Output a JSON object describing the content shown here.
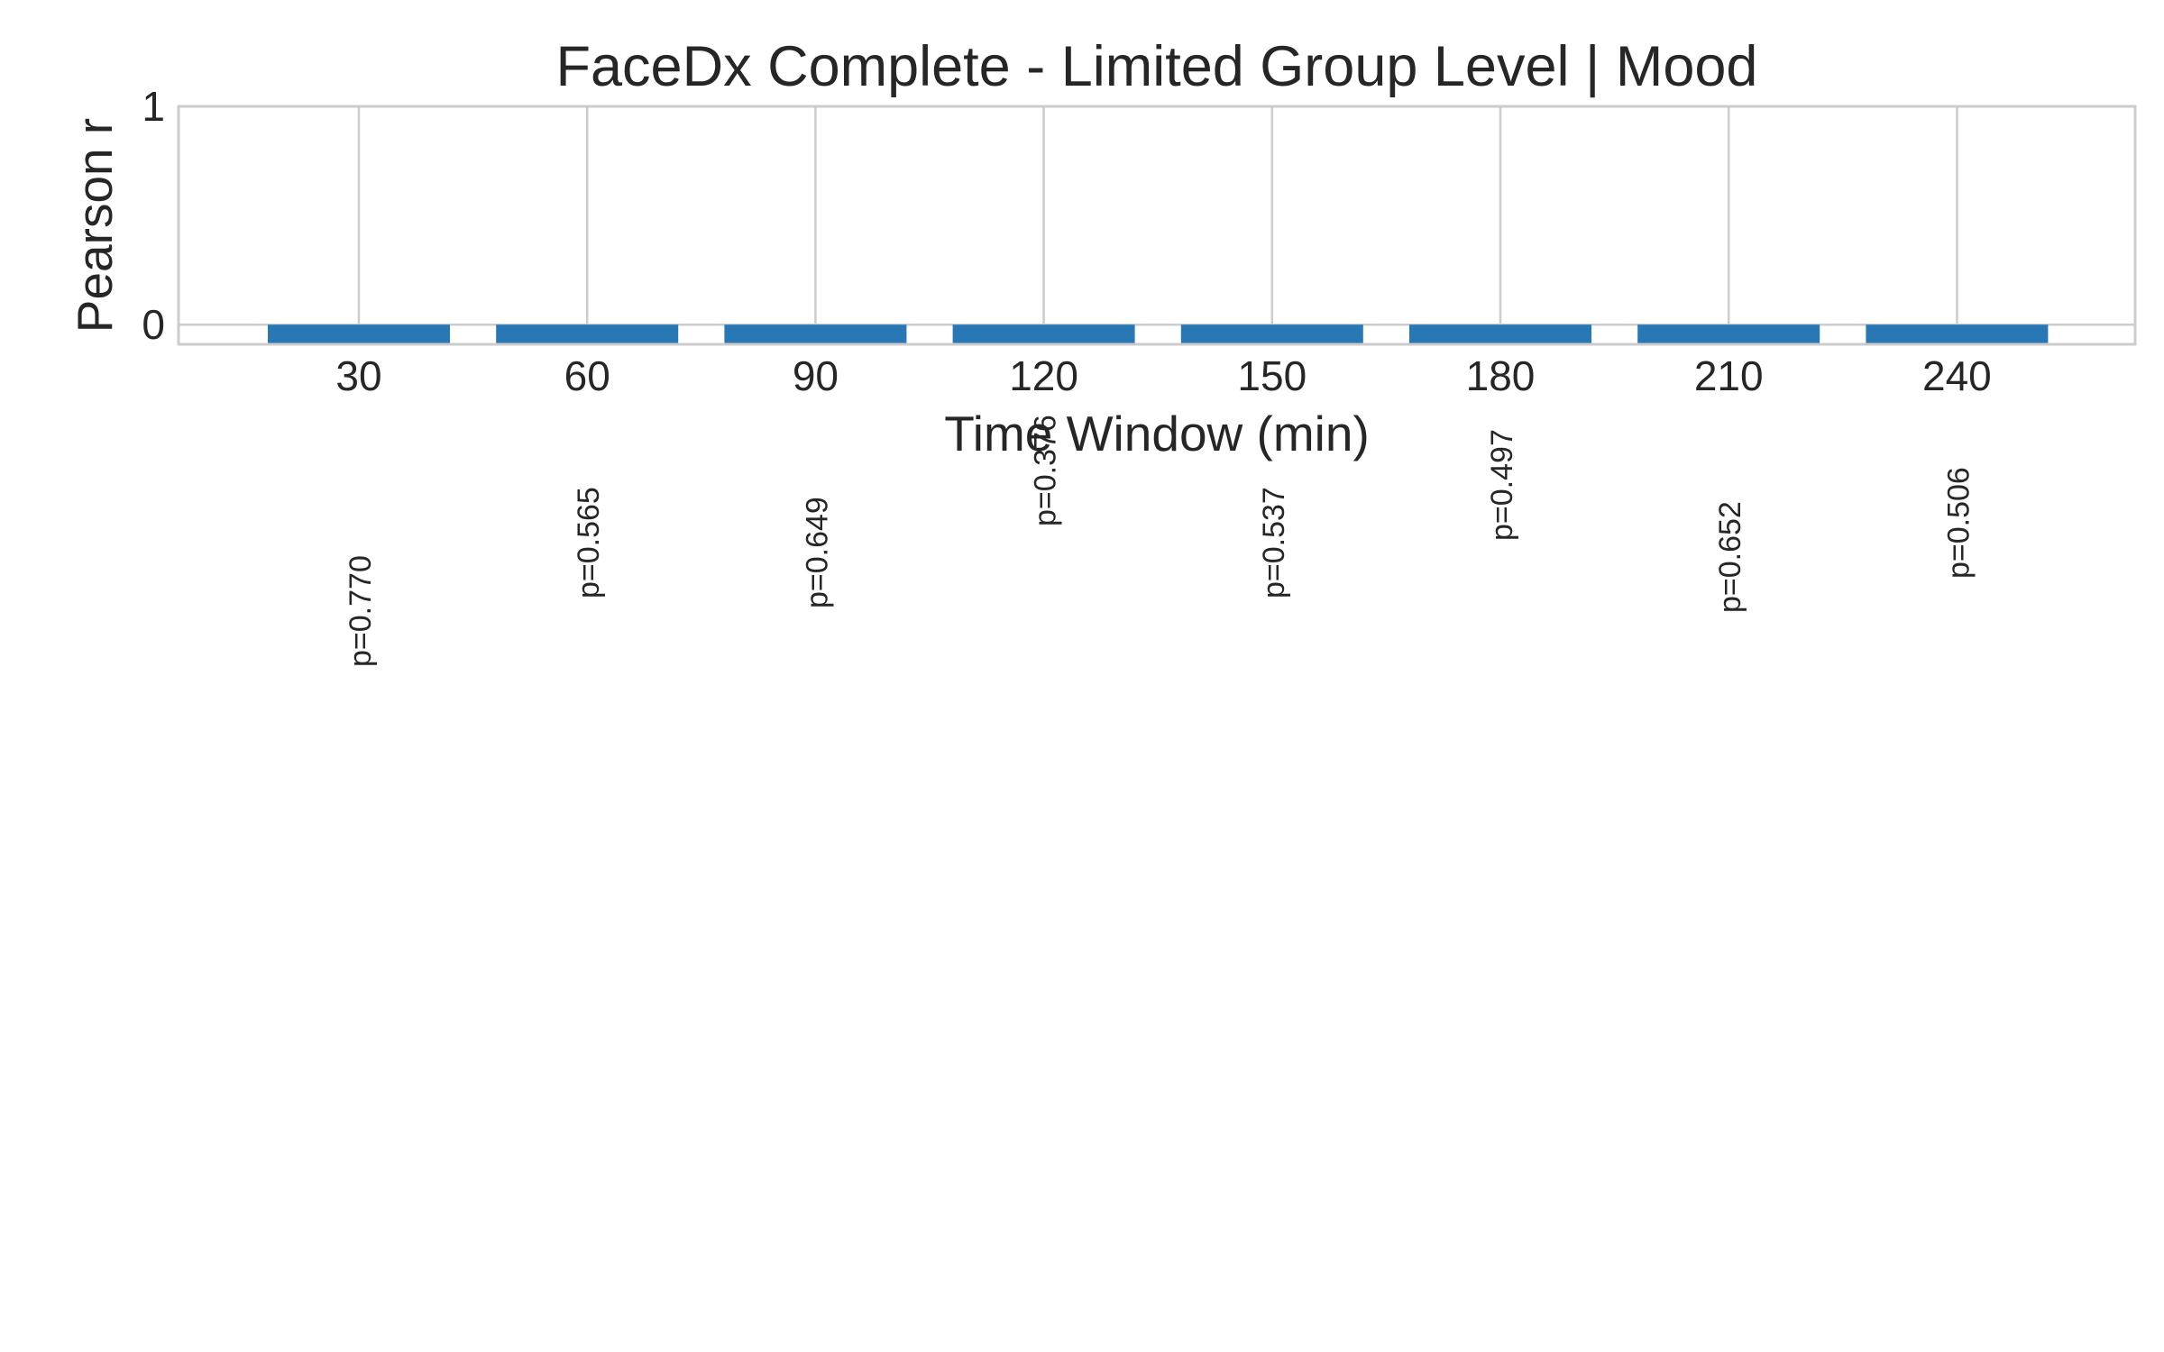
{
  "chart_data": {
    "type": "bar",
    "title": "FaceDx Complete - Limited Group Level | Mood",
    "xlabel": "Time Window (min)",
    "ylabel": "Pearson r",
    "categories": [
      "30",
      "60",
      "90",
      "120",
      "150",
      "180",
      "210",
      "240"
    ],
    "values": [
      -0.09,
      -0.09,
      -0.09,
      -0.09,
      -0.09,
      -0.09,
      -0.09,
      -0.09
    ],
    "ylim": [
      -0.09,
      1
    ],
    "yticks": [
      "0",
      "1"
    ],
    "annotations": [
      "p=0.770",
      "p=0.565",
      "p=0.649",
      "p=0.376",
      "p=0.537",
      "p=0.497",
      "p=0.652",
      "p=0.506"
    ],
    "grid": true,
    "bar_color": "#2878b5",
    "grid_color": "#cccccc",
    "spine_color": "#cccccc"
  }
}
